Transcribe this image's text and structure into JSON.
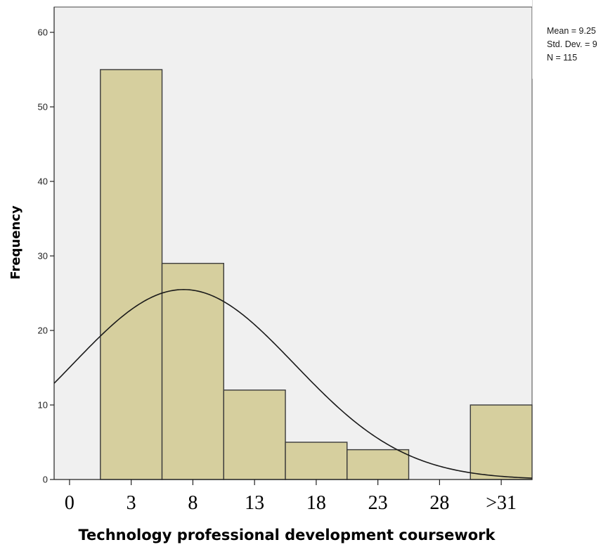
{
  "chart_data": {
    "type": "bar",
    "chart_subtype": "histogram",
    "title": "",
    "xlabel": "Technology professional development coursework",
    "ylabel": "Frequency",
    "ylim": [
      0,
      60
    ],
    "y_ticks": [
      0,
      10,
      20,
      30,
      40,
      50,
      60
    ],
    "xlim": [
      -1.25,
      37.5
    ],
    "x_ticks": [
      {
        "label": "0",
        "x": 0
      },
      {
        "label": "3",
        "x": 5
      },
      {
        "label": "8",
        "x": 10
      },
      {
        "label": "13",
        "x": 15
      },
      {
        "label": "18",
        "x": 20
      },
      {
        "label": "23",
        "x": 25
      },
      {
        "label": "28",
        "x": 30
      },
      {
        "label": ">31",
        "x": 35
      }
    ],
    "bins": [
      {
        "start": 2.5,
        "end": 7.5,
        "value": 55
      },
      {
        "start": 7.5,
        "end": 12.5,
        "value": 29
      },
      {
        "start": 12.5,
        "end": 17.5,
        "value": 12
      },
      {
        "start": 17.5,
        "end": 22.5,
        "value": 5
      },
      {
        "start": 22.5,
        "end": 27.5,
        "value": 4
      },
      {
        "start": 32.5,
        "end": 37.5,
        "value": 10
      }
    ],
    "normal_curve": {
      "mean": 9.25,
      "sd": 9,
      "n": 115,
      "bin_width": 5
    },
    "stats": {
      "mean_label": "Mean = 9.25",
      "sd_label": "Std. Dev. = 9",
      "n_label": "N = 115"
    },
    "grid": false,
    "colors": {
      "bar_fill": "#d6cf9e",
      "bar_stroke": "#3a3a3a",
      "plot_background": "#f0f0f0",
      "curve": "#1a1a1a"
    }
  }
}
